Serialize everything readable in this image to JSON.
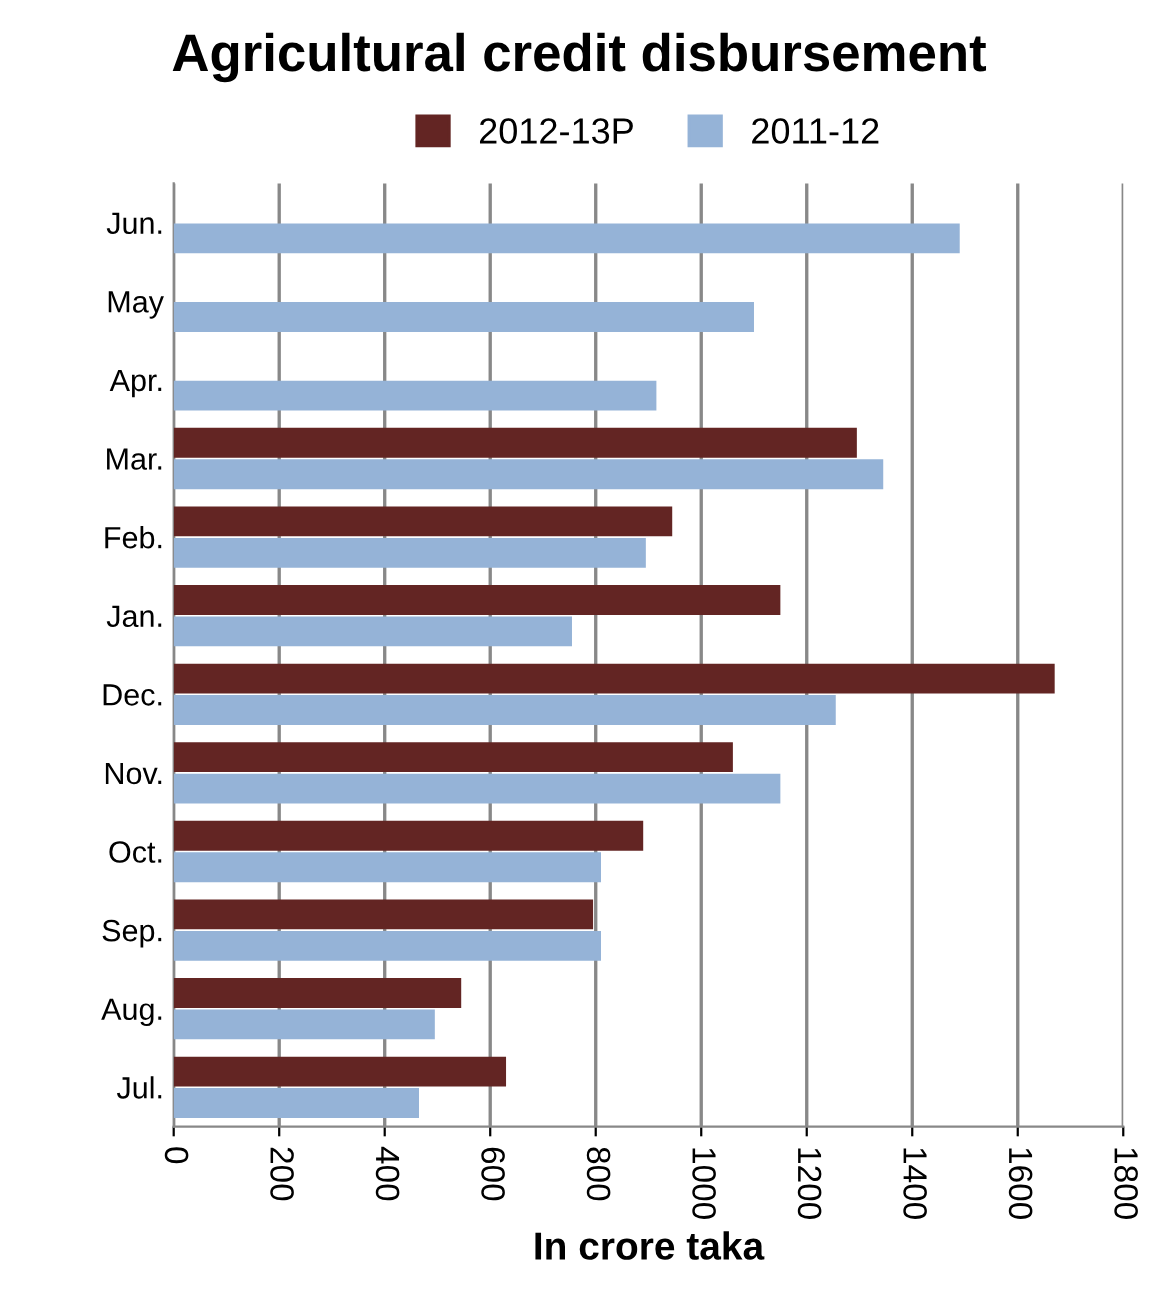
{
  "chart_data": {
    "type": "bar",
    "orientation": "horizontal",
    "title": "Agricultural credit disbursement",
    "xlabel": "In crore taka",
    "categories": [
      "Jun.",
      "May",
      "Apr.",
      "Mar.",
      "Feb.",
      "Jan.",
      "Dec.",
      "Nov.",
      "Oct.",
      "Sep.",
      "Aug.",
      "Jul."
    ],
    "series": [
      {
        "name": "2012-13P",
        "color": "#632523",
        "values": [
          null,
          null,
          null,
          1295,
          945,
          1150,
          1670,
          1060,
          890,
          795,
          545,
          630
        ]
      },
      {
        "name": "2011-12",
        "color": "#95b3d7",
        "values": [
          1490,
          1100,
          915,
          1345,
          895,
          755,
          1255,
          1150,
          810,
          810,
          495,
          465
        ]
      }
    ],
    "xlim": [
      0,
      1800
    ],
    "xticks": [
      0,
      200,
      400,
      600,
      800,
      1000,
      1200,
      1400,
      1600,
      1800
    ],
    "grid": "x",
    "legend": "top"
  }
}
